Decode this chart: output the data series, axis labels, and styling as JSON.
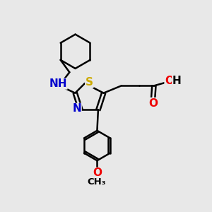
{
  "bg_color": "#e8e8e8",
  "bond_color": "#000000",
  "bond_lw": 1.8,
  "atom_colors": {
    "N": "#0000cc",
    "S": "#ccaa00",
    "O": "#ee0000",
    "C": "#000000",
    "H": "#000000"
  },
  "font_size_atom": 11,
  "font_size_small": 9.5
}
